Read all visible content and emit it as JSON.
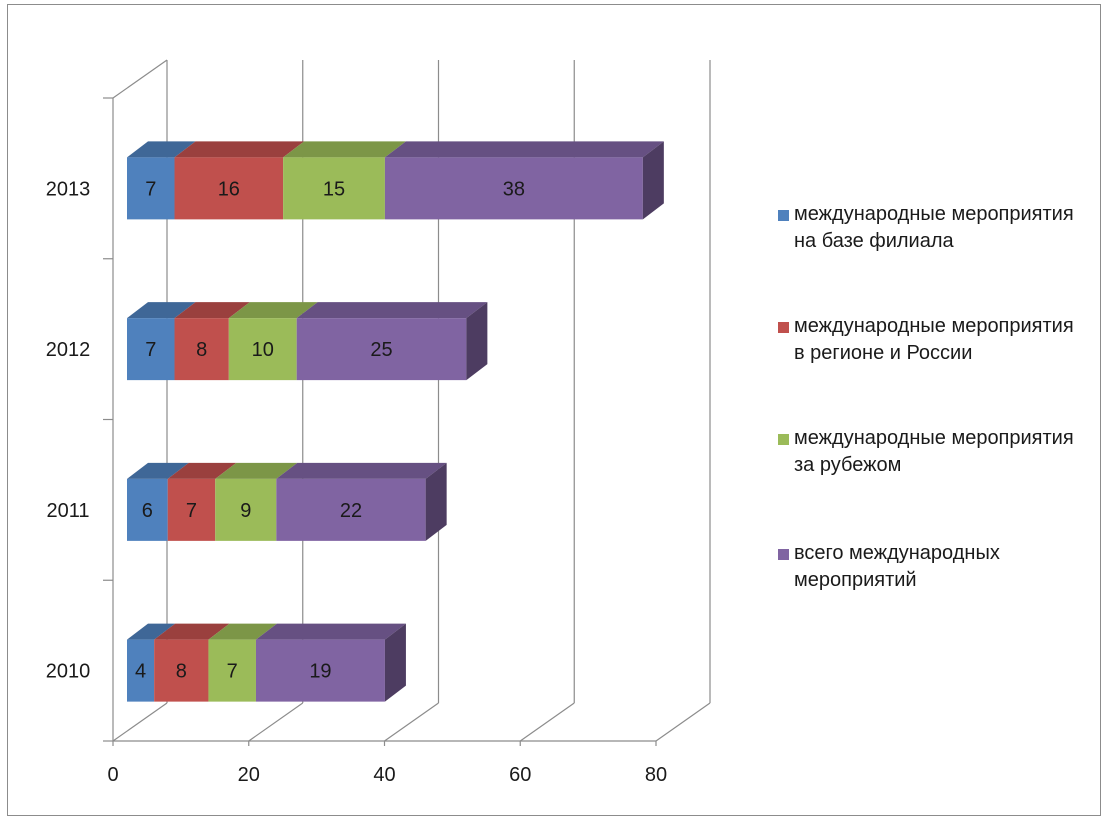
{
  "chart_data": {
    "type": "bar",
    "orientation": "horizontal",
    "stacked": true,
    "three_d": true,
    "categories": [
      "2010",
      "2011",
      "2012",
      "2013"
    ],
    "series": [
      {
        "name": "международные мероприятия  на базе филиала",
        "values": [
          4,
          6,
          7,
          7
        ],
        "color": "#4f81bd"
      },
      {
        "name": "международные мероприятия в регионе и России",
        "values": [
          8,
          7,
          8,
          16
        ],
        "color": "#c0504d"
      },
      {
        "name": "международные мероприятия за рубежом",
        "values": [
          7,
          9,
          10,
          15
        ],
        "color": "#9bbb59"
      },
      {
        "name": "всего международных мероприятий",
        "values": [
          19,
          22,
          25,
          38
        ],
        "color": "#8064a2"
      }
    ],
    "xlim": [
      0,
      80
    ],
    "x_ticks": [
      "0",
      "20",
      "40",
      "60",
      "80"
    ],
    "grid": true,
    "legend_position": "right",
    "title": "",
    "xlabel": "",
    "ylabel": ""
  }
}
